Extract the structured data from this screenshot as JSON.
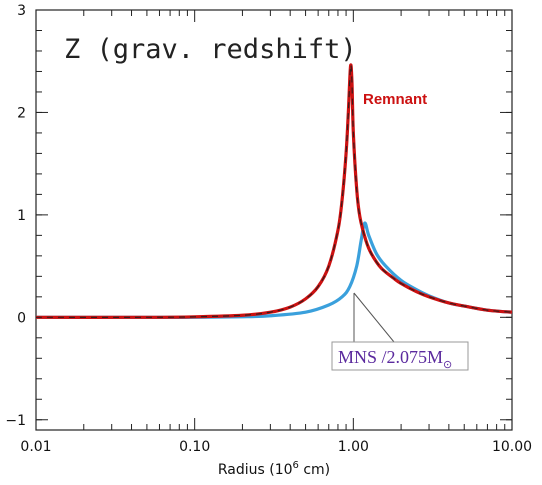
{
  "chart_data": {
    "type": "line",
    "title": "Z (grav. redshift)",
    "xlabel": "Radius (10",
    "xlabel_sup": "6",
    "xlabel_tail": " cm)",
    "xscale": "log",
    "xlim": [
      0.01,
      10.0
    ],
    "ylim": [
      -1.1,
      3.0
    ],
    "xticks": [
      0.01,
      0.1,
      1.0,
      10.0
    ],
    "xtick_labels": [
      "0.01",
      "0.10",
      "1.00",
      "10.00"
    ],
    "yticks": [
      -1,
      0,
      1,
      2,
      3
    ],
    "ytick_labels": [
      "−1",
      "0",
      "1",
      "2",
      "3"
    ],
    "grid": false,
    "series": [
      {
        "name": "Remnant",
        "color": "#cc1111",
        "x": [
          0.01,
          0.05,
          0.1,
          0.2,
          0.3,
          0.4,
          0.5,
          0.6,
          0.7,
          0.8,
          0.85,
          0.9,
          0.93,
          0.96,
          0.98,
          1.0,
          1.05,
          1.1,
          1.2,
          1.3,
          1.5,
          1.8,
          2.0,
          2.5,
          3.0,
          4.0,
          5.0,
          7.0,
          10.0
        ],
        "y": [
          0.0,
          0.0,
          0.005,
          0.02,
          0.05,
          0.1,
          0.18,
          0.3,
          0.5,
          0.85,
          1.15,
          1.6,
          2.0,
          2.45,
          2.3,
          1.8,
          1.25,
          0.98,
          0.75,
          0.62,
          0.48,
          0.38,
          0.33,
          0.25,
          0.2,
          0.14,
          0.11,
          0.07,
          0.05
        ]
      },
      {
        "name": "MNS /2.075M",
        "color": "#3aa0dc",
        "x": [
          0.01,
          0.05,
          0.1,
          0.2,
          0.3,
          0.5,
          0.7,
          0.85,
          0.95,
          1.05,
          1.12,
          1.18,
          1.25,
          1.4,
          1.6,
          2.0,
          2.5,
          3.0,
          4.0,
          5.0,
          7.0,
          10.0
        ],
        "y": [
          0.0,
          0.0,
          0.0,
          0.005,
          0.015,
          0.05,
          0.12,
          0.2,
          0.3,
          0.5,
          0.75,
          0.92,
          0.8,
          0.62,
          0.5,
          0.36,
          0.27,
          0.21,
          0.14,
          0.11,
          0.07,
          0.05
        ]
      }
    ],
    "annotations": {
      "remnant": "Remnant",
      "mns_main": "MNS /2.075M",
      "mns_sub": "⊙"
    }
  }
}
